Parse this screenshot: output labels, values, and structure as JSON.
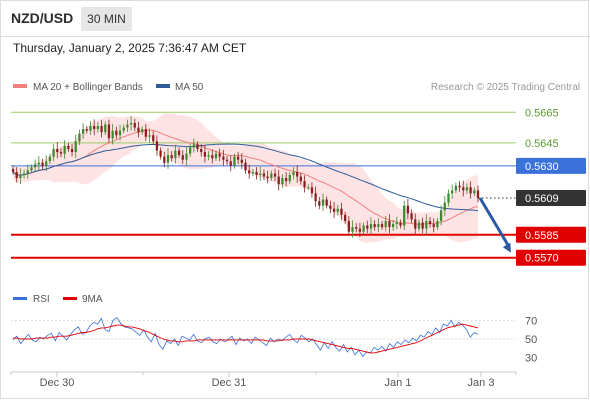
{
  "header": {
    "symbol": "NZD/USD",
    "timeframe": "30 MIN",
    "datetime": "Thursday, January 2, 2025 7:36:47 AM CET"
  },
  "legend": {
    "ma20": "MA 20 + Bollinger Bands",
    "ma50": "MA 50",
    "credit": "Research © 2025 Trading Central",
    "rsi": "RSI",
    "rsi_ma": "9MA"
  },
  "colors": {
    "ma20": "#f08080",
    "ma50": "#2e5c9a",
    "bollinger_fill": "#fcdcdc",
    "candle_up": "#3d8a2e",
    "candle_down": "#8b1f1f",
    "resistance": "#9acd6a",
    "pivot": "#3b72d9",
    "support": "#e00000",
    "current": "#333333",
    "arrow": "#2a5aa0"
  },
  "chart_data": [
    {
      "type": "candlestick",
      "title": "",
      "xlabel": "",
      "ylabel": "",
      "x_ticks": [
        "Dec 30",
        "Dec 31",
        "Jan 1",
        "Jan 3"
      ],
      "ylim": [
        0.5562,
        0.5673
      ],
      "price_levels": [
        {
          "label": "0.5665",
          "value": 0.5665,
          "kind": "resistance"
        },
        {
          "label": "0.5645",
          "value": 0.5645,
          "kind": "resistance"
        },
        {
          "label": "0.5630",
          "value": 0.563,
          "kind": "pivot"
        },
        {
          "label": "0.5609",
          "value": 0.5609,
          "kind": "current"
        },
        {
          "label": "0.5585",
          "value": 0.5585,
          "kind": "support"
        },
        {
          "label": "0.5570",
          "value": 0.557,
          "kind": "support"
        }
      ],
      "close": [
        0.5626,
        0.5622,
        0.5624,
        0.5625,
        0.5627,
        0.5629,
        0.5631,
        0.5632,
        0.563,
        0.5633,
        0.5636,
        0.5641,
        0.5639,
        0.5638,
        0.5643,
        0.5641,
        0.5639,
        0.5646,
        0.5651,
        0.5654,
        0.5653,
        0.5656,
        0.5654,
        0.5656,
        0.5652,
        0.5657,
        0.5648,
        0.5653,
        0.565,
        0.5653,
        0.5655,
        0.5657,
        0.5658,
        0.5655,
        0.5652,
        0.5654,
        0.5649,
        0.565,
        0.5646,
        0.564,
        0.5636,
        0.5632,
        0.5637,
        0.5635,
        0.564,
        0.5637,
        0.5634,
        0.5638,
        0.5642,
        0.5644,
        0.5641,
        0.5639,
        0.5636,
        0.5637,
        0.5635,
        0.5638,
        0.5636,
        0.5634,
        0.5633,
        0.563,
        0.5636,
        0.5634,
        0.5632,
        0.5627,
        0.5625,
        0.5626,
        0.5624,
        0.5625,
        0.5623,
        0.5622,
        0.5625,
        0.5623,
        0.5618,
        0.5622,
        0.562,
        0.5624,
        0.5626,
        0.5623,
        0.562,
        0.5616,
        0.5616,
        0.5612,
        0.5607,
        0.5604,
        0.5608,
        0.5604,
        0.5602,
        0.56,
        0.5602,
        0.5598,
        0.5594,
        0.5587,
        0.559,
        0.5589,
        0.5587,
        0.5591,
        0.5589,
        0.5592,
        0.559,
        0.5592,
        0.559,
        0.5594,
        0.559,
        0.5592,
        0.5593,
        0.5591,
        0.5604,
        0.5599,
        0.5595,
        0.5589,
        0.5593,
        0.5589,
        0.5594,
        0.5592,
        0.559,
        0.5594,
        0.5601,
        0.5606,
        0.5612,
        0.5614,
        0.5617,
        0.5616,
        0.5614,
        0.5616,
        0.5612,
        0.5614,
        0.5609
      ]
    },
    {
      "type": "line",
      "title": "",
      "series": [
        {
          "name": "RSI"
        },
        {
          "name": "9MA"
        }
      ],
      "y_ticks": [
        70,
        50,
        30
      ],
      "ylim": [
        22,
        78
      ],
      "rsi": [
        49,
        53,
        45,
        50,
        55,
        49,
        47,
        52,
        50,
        54,
        56,
        48,
        57,
        53,
        49,
        55,
        60,
        63,
        55,
        57,
        64,
        68,
        66,
        72,
        60,
        58,
        70,
        73,
        67,
        63,
        62,
        61,
        57,
        54,
        60,
        52,
        47,
        56,
        44,
        39,
        48,
        45,
        50,
        43,
        53,
        51,
        49,
        55,
        48,
        46,
        50,
        52,
        47,
        45,
        50,
        47,
        49,
        53,
        44,
        51,
        48,
        50,
        45,
        52,
        49,
        46,
        43,
        51,
        47,
        50,
        48,
        52,
        55,
        49,
        46,
        54,
        51,
        47,
        50,
        44,
        38,
        46,
        40,
        47,
        41,
        37,
        44,
        36,
        41,
        33,
        38,
        31,
        36,
        35,
        41,
        38,
        42,
        37,
        45,
        41,
        47,
        44,
        49,
        46,
        51,
        48,
        54,
        52,
        58,
        55,
        62,
        57,
        66,
        64,
        70,
        63,
        68,
        65,
        60,
        52,
        57,
        55
      ],
      "ma9": [
        51,
        51,
        50,
        50,
        50,
        50,
        51,
        51,
        51,
        51,
        52,
        52,
        53,
        53,
        53,
        54,
        55,
        56,
        57,
        57,
        58,
        59,
        61,
        62,
        62,
        63,
        64,
        65,
        65,
        64,
        63,
        63,
        62,
        61,
        59,
        58,
        56,
        54,
        52,
        50,
        49,
        48,
        48,
        47,
        47,
        48,
        48,
        48,
        49,
        49,
        49,
        49,
        49,
        49,
        49,
        49,
        49,
        49,
        49,
        49,
        49,
        49,
        49,
        49,
        49,
        49,
        48,
        48,
        48,
        48,
        49,
        49,
        49,
        50,
        50,
        50,
        50,
        50,
        49,
        48,
        47,
        46,
        45,
        44,
        43,
        42,
        41,
        40,
        40,
        39,
        38,
        37,
        36,
        35,
        35,
        36,
        37,
        38,
        39,
        40,
        41,
        42,
        43,
        44,
        45,
        46,
        48,
        50,
        52,
        54,
        56,
        58,
        60,
        62,
        63,
        64,
        65,
        66,
        65,
        64,
        63,
        62
      ]
    }
  ]
}
